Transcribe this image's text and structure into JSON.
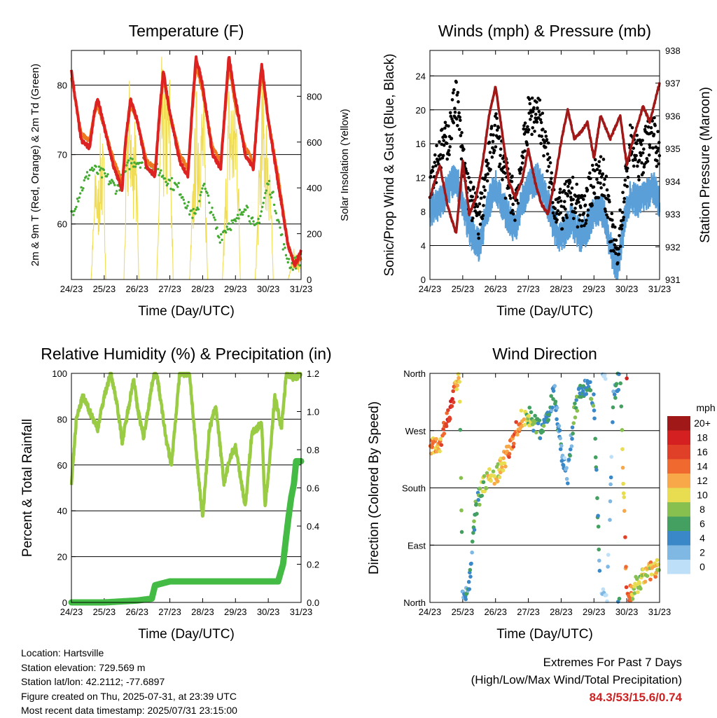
{
  "station": {
    "location": "Location: Hartsville",
    "elevation": "Station elevation: 729.569 m",
    "latlon": "Station lat/lon: 42.2112; -77.6897",
    "created": "Figure created on Thu, 2025-07-31, at 23:39 UTC",
    "recent": "Most recent data timestamp: 2025/07/31 23:15:00"
  },
  "extremes": {
    "title": "Extremes For Past 7 Days",
    "subtitle": "(High/Low/Max Wind/Total Precipitation)",
    "values": "84.3/53/15.6/0.74"
  },
  "colors": {
    "temp_2m": "#ee7722",
    "temp_9m": "#dd2222",
    "dewpoint": "#44aa33",
    "solar": "#f0dd55",
    "wind": "#5a9fd8",
    "gust": "#000000",
    "pressure": "#a01818",
    "rh": "#99cc44",
    "precip": "#44bb44"
  },
  "x_axis_label": "Time (Day/UTC)",
  "x_ticks": [
    "24/23",
    "25/23",
    "26/23",
    "27/23",
    "28/23",
    "29/23",
    "30/23",
    "31/23"
  ],
  "wind_speed_legend": {
    "unit": "mph",
    "levels": [
      {
        "label": "20+",
        "color": "#a01818"
      },
      {
        "label": "18",
        "color": "#d42020"
      },
      {
        "label": "16",
        "color": "#e04028"
      },
      {
        "label": "14",
        "color": "#f06a30"
      },
      {
        "label": "12",
        "color": "#f8a848"
      },
      {
        "label": "10",
        "color": "#e8dc50"
      },
      {
        "label": "8",
        "color": "#88c050"
      },
      {
        "label": "6",
        "color": "#44a060"
      },
      {
        "label": "4",
        "color": "#3a88c8"
      },
      {
        "label": "2",
        "color": "#80b8e4"
      },
      {
        "label": "0",
        "color": "#bde0f8"
      }
    ]
  },
  "chart_data": [
    {
      "type": "line",
      "title": "Temperature (F)",
      "xlabel": "Time (Day/UTC)",
      "ylabel": "2m & 9m T (Red, Orange) & 2m Td (Green)",
      "ylabel_right": "Solar Insolation (Yellow)",
      "x_unit": "days since 24/23",
      "xlim": [
        0,
        7
      ],
      "ylim": [
        52,
        85
      ],
      "yticks": [
        60,
        70,
        80
      ],
      "ylim_right": [
        0,
        1000
      ],
      "yticks_right": [
        0,
        200,
        400,
        600,
        800
      ],
      "grid": true,
      "series": [
        {
          "name": "9m T",
          "color": "#dd2222",
          "x": [
            0,
            0.3,
            0.55,
            0.7,
            0.8,
            1.0,
            1.3,
            1.55,
            1.65,
            1.8,
            2.0,
            2.3,
            2.55,
            2.7,
            2.8,
            3.0,
            3.3,
            3.55,
            3.7,
            3.8,
            4.0,
            4.3,
            4.55,
            4.7,
            4.8,
            5.0,
            5.3,
            5.55,
            5.7,
            5.8,
            6.0,
            6.3,
            6.6,
            6.8,
            7.0
          ],
          "values": [
            82,
            72,
            71,
            76,
            78,
            74,
            68,
            65,
            72,
            78,
            75,
            68,
            67,
            77,
            82,
            76,
            69,
            67,
            78,
            84,
            80,
            70,
            68,
            78,
            84,
            78,
            70,
            68,
            78,
            83,
            75,
            66,
            57,
            54,
            56
          ]
        },
        {
          "name": "2m T",
          "color": "#ee7722",
          "x": [
            0,
            0.3,
            0.55,
            0.7,
            0.8,
            1.0,
            1.3,
            1.55,
            1.65,
            1.8,
            2.0,
            2.3,
            2.55,
            2.7,
            2.8,
            3.0,
            3.3,
            3.55,
            3.7,
            3.8,
            4.0,
            4.3,
            4.55,
            4.7,
            4.8,
            5.0,
            5.3,
            5.55,
            5.7,
            5.8,
            6.0,
            6.3,
            6.6,
            6.8,
            7.0
          ],
          "values": [
            81,
            73,
            72,
            76,
            77,
            74,
            69,
            66,
            72,
            77,
            75,
            69,
            68,
            76,
            81,
            76,
            70,
            68,
            77,
            83,
            79,
            71,
            69,
            77,
            83,
            77,
            71,
            69,
            77,
            82,
            75,
            67,
            57,
            54,
            55
          ]
        },
        {
          "name": "2m Td",
          "color": "#44aa33",
          "x": [
            0,
            0.3,
            0.6,
            1.0,
            1.4,
            1.8,
            2.2,
            2.6,
            3.0,
            3.3,
            3.6,
            3.8,
            4.0,
            4.2,
            4.5,
            4.8,
            5.0,
            5.3,
            5.6,
            5.8,
            6.0,
            6.2,
            6.5,
            6.7,
            7.0
          ],
          "values": [
            61.5,
            65,
            68,
            67,
            65,
            69,
            69,
            68,
            66,
            65,
            62,
            61,
            66,
            63,
            58,
            60,
            60,
            63,
            59,
            62,
            66,
            63,
            56,
            54,
            55
          ]
        },
        {
          "name": "Solar Insolation",
          "color": "#f0dd55",
          "axis": "right",
          "x": [
            0.6,
            0.75,
            0.8,
            0.9,
            1.0,
            1.05,
            1.6,
            1.7,
            1.8,
            1.85,
            1.95,
            2.05,
            2.6,
            2.75,
            2.85,
            3.0,
            3.1,
            3.6,
            3.8,
            3.9,
            4.05,
            4.15,
            4.6,
            4.8,
            4.9,
            5.05,
            5.15,
            5.6,
            5.8,
            5.9,
            6.05,
            6.15,
            6.6,
            6.8,
            6.9,
            7.0
          ],
          "values": [
            0,
            600,
            400,
            700,
            550,
            0,
            0,
            780,
            950,
            600,
            900,
            0,
            0,
            980,
            850,
            950,
            0,
            0,
            850,
            830,
            820,
            0,
            0,
            900,
            870,
            860,
            0,
            0,
            880,
            830,
            600,
            0,
            0,
            150,
            100,
            50
          ]
        }
      ]
    },
    {
      "type": "scatter",
      "title": "Winds (mph) & Pressure (mb)",
      "xlabel": "Time (Day/UTC)",
      "ylabel": "Sonic/Prop Wind & Gust (Blue, Black)",
      "ylabel_right": "Station Pressure (Maroon)",
      "x_unit": "days since 24/23",
      "xlim": [
        0,
        7
      ],
      "ylim": [
        0,
        27
      ],
      "yticks": [
        0,
        4,
        8,
        12,
        16,
        20,
        24
      ],
      "ylim_right": [
        931,
        938
      ],
      "yticks_right": [
        931,
        932,
        933,
        934,
        935,
        936,
        937,
        938
      ],
      "grid": true,
      "series": [
        {
          "name": "Gust",
          "color": "#000000",
          "x": [
            0,
            0.3,
            0.6,
            0.8,
            1.0,
            1.2,
            1.5,
            1.8,
            2.0,
            2.3,
            2.6,
            2.8,
            3.0,
            3.3,
            3.6,
            3.8,
            4.0,
            4.3,
            4.6,
            4.8,
            5.0,
            5.3,
            5.5,
            5.7,
            5.9,
            6.1,
            6.4,
            6.6,
            6.8,
            7.0
          ],
          "values": [
            12,
            15,
            17,
            22,
            14,
            10,
            7,
            14,
            18,
            12,
            9,
            14,
            19,
            20,
            14,
            9,
            8,
            10,
            8,
            9,
            12,
            12,
            6,
            3,
            9,
            16,
            14,
            16,
            18,
            14
          ]
        },
        {
          "name": "Wind",
          "color": "#5a9fd8",
          "x": [
            0,
            0.3,
            0.6,
            0.8,
            1.0,
            1.2,
            1.5,
            1.8,
            2.0,
            2.3,
            2.6,
            2.8,
            3.0,
            3.3,
            3.6,
            3.8,
            4.0,
            4.3,
            4.6,
            4.8,
            5.0,
            5.3,
            5.5,
            5.7,
            5.9,
            6.1,
            6.4,
            6.6,
            6.8,
            7.0
          ],
          "values": [
            8,
            9,
            11,
            12,
            9,
            6,
            4,
            9,
            11,
            8,
            6,
            9,
            11,
            12,
            9,
            6,
            5,
            7,
            5,
            6,
            8,
            8,
            4,
            1,
            6,
            10,
            9,
            10,
            11,
            9
          ]
        },
        {
          "name": "Pressure",
          "color": "#a01818",
          "axis": "right",
          "x": [
            0,
            0.3,
            0.55,
            0.8,
            1.0,
            1.2,
            1.4,
            1.6,
            1.8,
            2.0,
            2.2,
            2.4,
            2.6,
            2.8,
            3.0,
            3.2,
            3.4,
            3.6,
            3.8,
            4.0,
            4.2,
            4.4,
            4.6,
            4.8,
            5.0,
            5.2,
            5.5,
            5.8,
            6.0,
            6.2,
            6.5,
            6.7,
            7.0
          ],
          "values": [
            933.5,
            934.5,
            933.2,
            932.4,
            934.6,
            933.0,
            933.5,
            934.5,
            936.0,
            936.9,
            935.5,
            934.0,
            933.5,
            934.0,
            935.0,
            934.0,
            933.3,
            933.0,
            934.0,
            935.2,
            936.2,
            935.3,
            935.5,
            935.8,
            934.7,
            936.0,
            935.3,
            936.0,
            934.5,
            935.3,
            936.3,
            935.8,
            937.0
          ]
        }
      ]
    },
    {
      "type": "line",
      "title": "Relative Humidity (%) & Precipitation (in)",
      "xlabel": "Time (Day/UTC)",
      "ylabel": "Percent & Total Rainfall",
      "x_unit": "days since 24/23",
      "xlim": [
        0,
        7
      ],
      "ylim": [
        0,
        100
      ],
      "yticks": [
        0,
        20,
        40,
        60,
        80,
        100
      ],
      "ylim_right": [
        0,
        1.2
      ],
      "yticks_right": [
        "0.0",
        "0.2",
        "0.4",
        "0.6",
        "0.8",
        "1.0",
        "1.2"
      ],
      "grid": true,
      "series": [
        {
          "name": "RH",
          "color": "#99cc44",
          "x": [
            0,
            0.15,
            0.35,
            0.6,
            0.8,
            1.0,
            1.2,
            1.4,
            1.55,
            1.7,
            1.9,
            2.0,
            2.2,
            2.5,
            2.6,
            2.9,
            3.05,
            3.3,
            3.6,
            3.85,
            4.0,
            4.2,
            4.4,
            4.65,
            4.85,
            5.0,
            5.3,
            5.5,
            5.8,
            5.9,
            6.0,
            6.2,
            6.4,
            6.55,
            6.8,
            7.0
          ],
          "values": [
            52,
            80,
            90,
            82,
            76,
            90,
            100,
            86,
            70,
            82,
            98,
            86,
            72,
            99,
            100,
            70,
            60,
            100,
            100,
            58,
            37,
            75,
            86,
            52,
            64,
            68,
            42,
            74,
            78,
            42,
            55,
            90,
            76,
            100,
            98,
            100
          ]
        },
        {
          "name": "Total Rainfall",
          "color": "#44bb44",
          "axis": "right",
          "x": [
            0,
            1.0,
            2.0,
            2.45,
            2.55,
            3.0,
            4.0,
            5.0,
            6.0,
            6.3,
            6.45,
            6.55,
            6.62,
            6.7,
            6.78,
            6.85,
            7.0
          ],
          "values": [
            0,
            0,
            0.01,
            0.02,
            0.09,
            0.11,
            0.11,
            0.11,
            0.11,
            0.11,
            0.2,
            0.35,
            0.45,
            0.55,
            0.62,
            0.74,
            0.74
          ]
        }
      ]
    },
    {
      "type": "scatter",
      "title": "Wind Direction",
      "xlabel": "Time (Day/UTC)",
      "ylabel": "Direction (Colored By Speed)",
      "x_unit": "days since 24/23",
      "xlim": [
        0,
        7
      ],
      "ylim": [
        0,
        360
      ],
      "ytick_labels": [
        "North",
        "East",
        "South",
        "West",
        "North"
      ],
      "grid": true,
      "series": [
        {
          "name": "Direction",
          "x": [
            0.0,
            0.15,
            0.3,
            0.45,
            0.6,
            0.75,
            0.9,
            1.0,
            1.2,
            1.4,
            1.6,
            1.8,
            2.0,
            2.2,
            2.4,
            2.6,
            2.8,
            3.0,
            3.2,
            3.4,
            3.6,
            3.8,
            4.0,
            4.2,
            4.4,
            4.6,
            4.8,
            5.0,
            5.2,
            5.4,
            5.6,
            5.8,
            6.0,
            6.2,
            6.4,
            6.6,
            6.8,
            7.0
          ],
          "values": [
            250,
            245,
            250,
            280,
            300,
            330,
            355,
            5,
            30,
            150,
            180,
            195,
            200,
            215,
            240,
            265,
            290,
            295,
            280,
            270,
            300,
            330,
            240,
            200,
            300,
            330,
            340,
            320,
            10,
            5,
            330,
            355,
            5,
            20,
            35,
            45,
            55,
            50
          ],
          "speeds": [
            14,
            12,
            12,
            16,
            18,
            14,
            10,
            4,
            4,
            6,
            8,
            10,
            10,
            12,
            14,
            14,
            12,
            8,
            6,
            6,
            4,
            4,
            4,
            2,
            6,
            6,
            4,
            6,
            2,
            0,
            4,
            4,
            16,
            10,
            8,
            10,
            12,
            10
          ]
        }
      ]
    }
  ]
}
